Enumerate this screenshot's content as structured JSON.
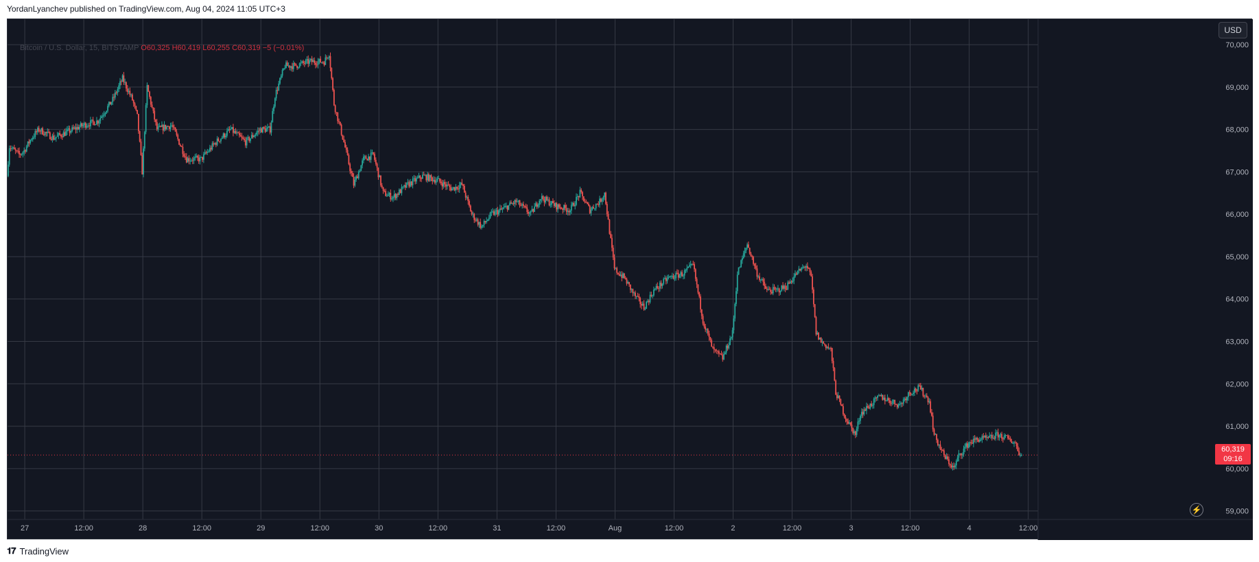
{
  "header": {
    "text": "YordanLyanchev published on TradingView.com, Aug 04, 2024 11:05 UTC+3"
  },
  "footer": {
    "brand": "TradingView",
    "logo_icon": "tradingview-logo-icon"
  },
  "toolbar": {
    "currency_label": "USD",
    "flash_icon": "lightning-icon"
  },
  "legend": {
    "symbol": "Bitcoin / U.S. Dollar, 15, BITSTAMP",
    "open_label": "O",
    "open": "60,325",
    "high_label": "H",
    "high": "60,419",
    "low_label": "L",
    "low": "60,255",
    "close_label": "C",
    "close": "60,319",
    "change": "−5 (−0.01%)"
  },
  "last_price": {
    "price": "60,319",
    "countdown": "09:16"
  },
  "colors": {
    "background": "#131722",
    "up": "#26a69a",
    "down": "#ef5350",
    "grid": "#2a2e39",
    "price_tag": "#f23645"
  },
  "chart_data": {
    "type": "candlestick",
    "title": "",
    "symbol": "Bitcoin / U.S. Dollar, 15, BITSTAMP",
    "interval": "15",
    "ylim": [
      58800,
      70600
    ],
    "y_ticks": [
      59000,
      60000,
      61000,
      62000,
      63000,
      64000,
      65000,
      66000,
      67000,
      68000,
      69000,
      70000
    ],
    "y_tick_labels": [
      "59,000",
      "60,000",
      "61,000",
      "62,000",
      "63,000",
      "64,000",
      "65,000",
      "66,000",
      "67,000",
      "68,000",
      "69,000",
      "70,000"
    ],
    "x_ticks": [
      "27",
      "12:00",
      "28",
      "12:00",
      "29",
      "12:00",
      "30",
      "12:00",
      "31",
      "12:00",
      "Aug",
      "12:00",
      "2",
      "12:00",
      "3",
      "12:00",
      "4",
      "12:00"
    ],
    "x_tick_hours": [
      0,
      12,
      24,
      36,
      48,
      60,
      72,
      84,
      96,
      108,
      120,
      132,
      144,
      156,
      168,
      180,
      192,
      204
    ],
    "x_range_hours": [
      -3.5,
      206
    ],
    "grid": true,
    "last_price": 60319,
    "price_path": [
      [
        -3.5,
        66900
      ],
      [
        -3,
        67600
      ],
      [
        -1,
        67400
      ],
      [
        0,
        67500
      ],
      [
        1.5,
        67800
      ],
      [
        3,
        68000
      ],
      [
        6,
        67800
      ],
      [
        9,
        67950
      ],
      [
        12,
        68100
      ],
      [
        15,
        68200
      ],
      [
        18,
        68700
      ],
      [
        20,
        69200
      ],
      [
        22,
        68700
      ],
      [
        23,
        68300
      ],
      [
        24,
        67000
      ],
      [
        25,
        69000
      ],
      [
        27,
        68000
      ],
      [
        30,
        68100
      ],
      [
        33,
        67300
      ],
      [
        36,
        67300
      ],
      [
        39,
        67700
      ],
      [
        42,
        68000
      ],
      [
        45,
        67700
      ],
      [
        48,
        68000
      ],
      [
        50,
        68000
      ],
      [
        51,
        68800
      ],
      [
        53,
        69500
      ],
      [
        55,
        69500
      ],
      [
        58,
        69600
      ],
      [
        61,
        69600
      ],
      [
        62,
        69800
      ],
      [
        63,
        68600
      ],
      [
        65,
        67700
      ],
      [
        67,
        66700
      ],
      [
        69,
        67300
      ],
      [
        71,
        67400
      ],
      [
        73,
        66500
      ],
      [
        75,
        66400
      ],
      [
        78,
        66700
      ],
      [
        81,
        66900
      ],
      [
        84,
        66800
      ],
      [
        87,
        66600
      ],
      [
        89,
        66700
      ],
      [
        91,
        66000
      ],
      [
        93,
        65700
      ],
      [
        95,
        66000
      ],
      [
        97,
        66100
      ],
      [
        100,
        66300
      ],
      [
        103,
        66000
      ],
      [
        105,
        66400
      ],
      [
        108,
        66200
      ],
      [
        111,
        66100
      ],
      [
        113,
        66500
      ],
      [
        115,
        66100
      ],
      [
        117,
        66300
      ],
      [
        118,
        66500
      ],
      [
        119,
        65600
      ],
      [
        120,
        64700
      ],
      [
        122,
        64500
      ],
      [
        124,
        64100
      ],
      [
        126,
        63800
      ],
      [
        128,
        64200
      ],
      [
        131,
        64500
      ],
      [
        134,
        64600
      ],
      [
        136,
        64800
      ],
      [
        138,
        63500
      ],
      [
        140,
        62800
      ],
      [
        142,
        62600
      ],
      [
        144,
        63200
      ],
      [
        145,
        64600
      ],
      [
        147,
        65300
      ],
      [
        149,
        64600
      ],
      [
        151,
        64200
      ],
      [
        153,
        64200
      ],
      [
        155,
        64300
      ],
      [
        157,
        64600
      ],
      [
        159,
        64800
      ],
      [
        160,
        64500
      ],
      [
        161,
        63200
      ],
      [
        162,
        63000
      ],
      [
        164,
        62800
      ],
      [
        165,
        61800
      ],
      [
        167,
        61200
      ],
      [
        169,
        60800
      ],
      [
        170,
        61300
      ],
      [
        172,
        61500
      ],
      [
        174,
        61700
      ],
      [
        176,
        61600
      ],
      [
        178,
        61500
      ],
      [
        180,
        61800
      ],
      [
        182,
        61900
      ],
      [
        184,
        61600
      ],
      [
        185,
        60800
      ],
      [
        187,
        60300
      ],
      [
        189,
        60000
      ],
      [
        190,
        60300
      ],
      [
        192,
        60600
      ],
      [
        194,
        60700
      ],
      [
        196,
        60700
      ],
      [
        198,
        60800
      ],
      [
        200,
        60700
      ],
      [
        201.5,
        60600
      ],
      [
        202.5,
        60319
      ]
    ]
  }
}
